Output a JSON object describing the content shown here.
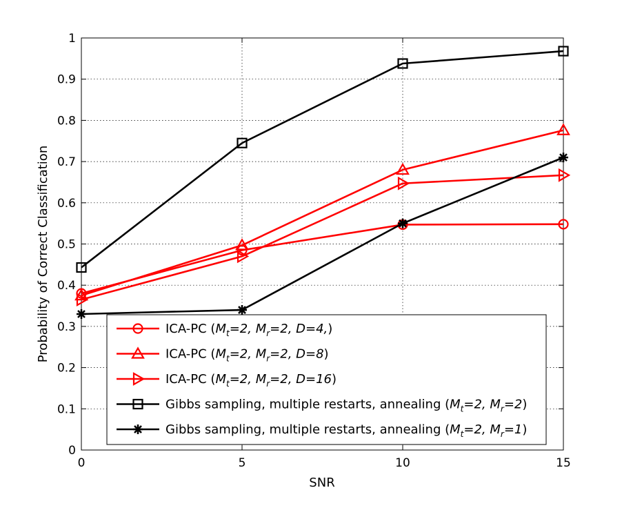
{
  "chart_data": {
    "type": "line",
    "title": "",
    "xlabel": "SNR",
    "ylabel": "Probability of Correct Classification",
    "xlim": [
      0,
      15
    ],
    "ylim": [
      0,
      1
    ],
    "x": [
      0,
      5,
      10,
      15
    ],
    "xticks": [
      "0",
      "5",
      "10",
      "15"
    ],
    "yticks": [
      "0",
      "0.1",
      "0.2",
      "0.3",
      "0.4",
      "0.5",
      "0.6",
      "0.7",
      "0.8",
      "0.9",
      "1"
    ],
    "grid": true,
    "legend_position": "bottom-right",
    "series": [
      {
        "name": "ICA-PC (Mt=2, Mr=2, D=4,)",
        "legend": {
          "prefix": "ICA-PC (",
          "terms": [
            [
              "M",
              "t",
              "=2, "
            ],
            [
              "M",
              "r",
              "=2, D=4,"
            ]
          ],
          "suffix": ")"
        },
        "values": [
          0.38,
          0.485,
          0.547,
          0.548
        ],
        "color": "#ff0000",
        "marker": "circle"
      },
      {
        "name": "ICA-PC (Mt=2, Mr=2, D=8)",
        "legend": {
          "prefix": "ICA-PC (",
          "terms": [
            [
              "M",
              "t",
              "=2, "
            ],
            [
              "M",
              "r",
              "=2, D=8"
            ]
          ],
          "suffix": ")"
        },
        "values": [
          0.375,
          0.497,
          0.68,
          0.776
        ],
        "color": "#ff0000",
        "marker": "triangle-up"
      },
      {
        "name": "ICA-PC (Mt=2, Mr=2, D=16)",
        "legend": {
          "prefix": "ICA-PC (",
          "terms": [
            [
              "M",
              "t",
              "=2, "
            ],
            [
              "M",
              "r",
              "=2, D=16"
            ]
          ],
          "suffix": ")"
        },
        "values": [
          0.365,
          0.47,
          0.647,
          0.667
        ],
        "color": "#ff0000",
        "marker": "triangle-right"
      },
      {
        "name": "Gibbs sampling, multiple restarts, annealing (Mt=2, Mr=2)",
        "legend": {
          "prefix": "Gibbs sampling, multiple restarts, annealing (",
          "terms": [
            [
              "M",
              "t",
              "=2, "
            ],
            [
              "M",
              "r",
              "=2"
            ]
          ],
          "suffix": ")"
        },
        "values": [
          0.443,
          0.745,
          0.938,
          0.968
        ],
        "color": "#000000",
        "marker": "square"
      },
      {
        "name": "Gibbs sampling, multiple restarts, annealing (Mt=2, Mr=1)",
        "legend": {
          "prefix": "Gibbs sampling, multiple restarts, annealing (",
          "terms": [
            [
              "M",
              "t",
              "=2, "
            ],
            [
              "M",
              "r",
              "=1"
            ]
          ],
          "suffix": ")"
        },
        "values": [
          0.33,
          0.34,
          0.55,
          0.71
        ],
        "color": "#000000",
        "marker": "asterisk"
      }
    ]
  }
}
